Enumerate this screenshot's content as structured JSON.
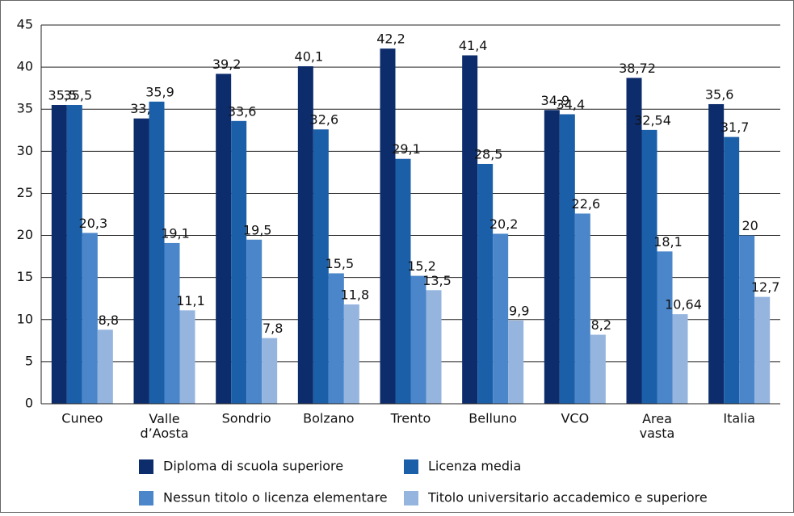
{
  "chart_data": {
    "type": "bar",
    "categories": [
      "Cuneo",
      "Valle d’Aosta",
      "Sondrio",
      "Bolzano",
      "Trento",
      "Belluno",
      "VCO",
      "Area vasta",
      "Italia"
    ],
    "series": [
      {
        "name": "Diploma di scuola superiore",
        "color": "#0d2c6c",
        "values": [
          35.5,
          33.9,
          39.2,
          40.1,
          42.2,
          41.4,
          34.9,
          38.72,
          35.6
        ],
        "value_labels": [
          "35,5",
          "33,9",
          "39,2",
          "40,1",
          "42,2",
          "41,4",
          "34,9",
          "38,72",
          "35,6"
        ]
      },
      {
        "name": "Licenza media",
        "color": "#1c5fa9",
        "values": [
          35.5,
          35.9,
          33.6,
          32.6,
          29.1,
          28.5,
          34.4,
          32.54,
          31.7
        ],
        "value_labels": [
          "35,5",
          "35,9",
          "33,6",
          "32,6",
          "29,1",
          "28,5",
          "34,4",
          "32,54",
          "31,7"
        ]
      },
      {
        "name": "Nessun titolo o licenza elementare",
        "color": "#4a86c9",
        "values": [
          20.3,
          19.1,
          19.5,
          15.5,
          15.2,
          20.2,
          22.6,
          18.1,
          20
        ],
        "value_labels": [
          "20,3",
          "19,1",
          "19,5",
          "15,5",
          "15,2",
          "20,2",
          "22,6",
          "18,1",
          "20"
        ]
      },
      {
        "name": "Titolo universitario accademico e superiore",
        "color": "#95b5df",
        "values": [
          8.8,
          11.1,
          7.8,
          11.8,
          13.5,
          9.9,
          8.2,
          10.64,
          12.7
        ],
        "value_labels": [
          "8,8",
          "11,1",
          "7,8",
          "11,8",
          "13,5",
          "9,9",
          "8,2",
          "10,64",
          "12,7"
        ]
      }
    ],
    "ylim": [
      0,
      45
    ],
    "yticks": [
      0,
      5,
      10,
      15,
      20,
      25,
      30,
      35,
      40,
      45
    ],
    "grid": true
  }
}
